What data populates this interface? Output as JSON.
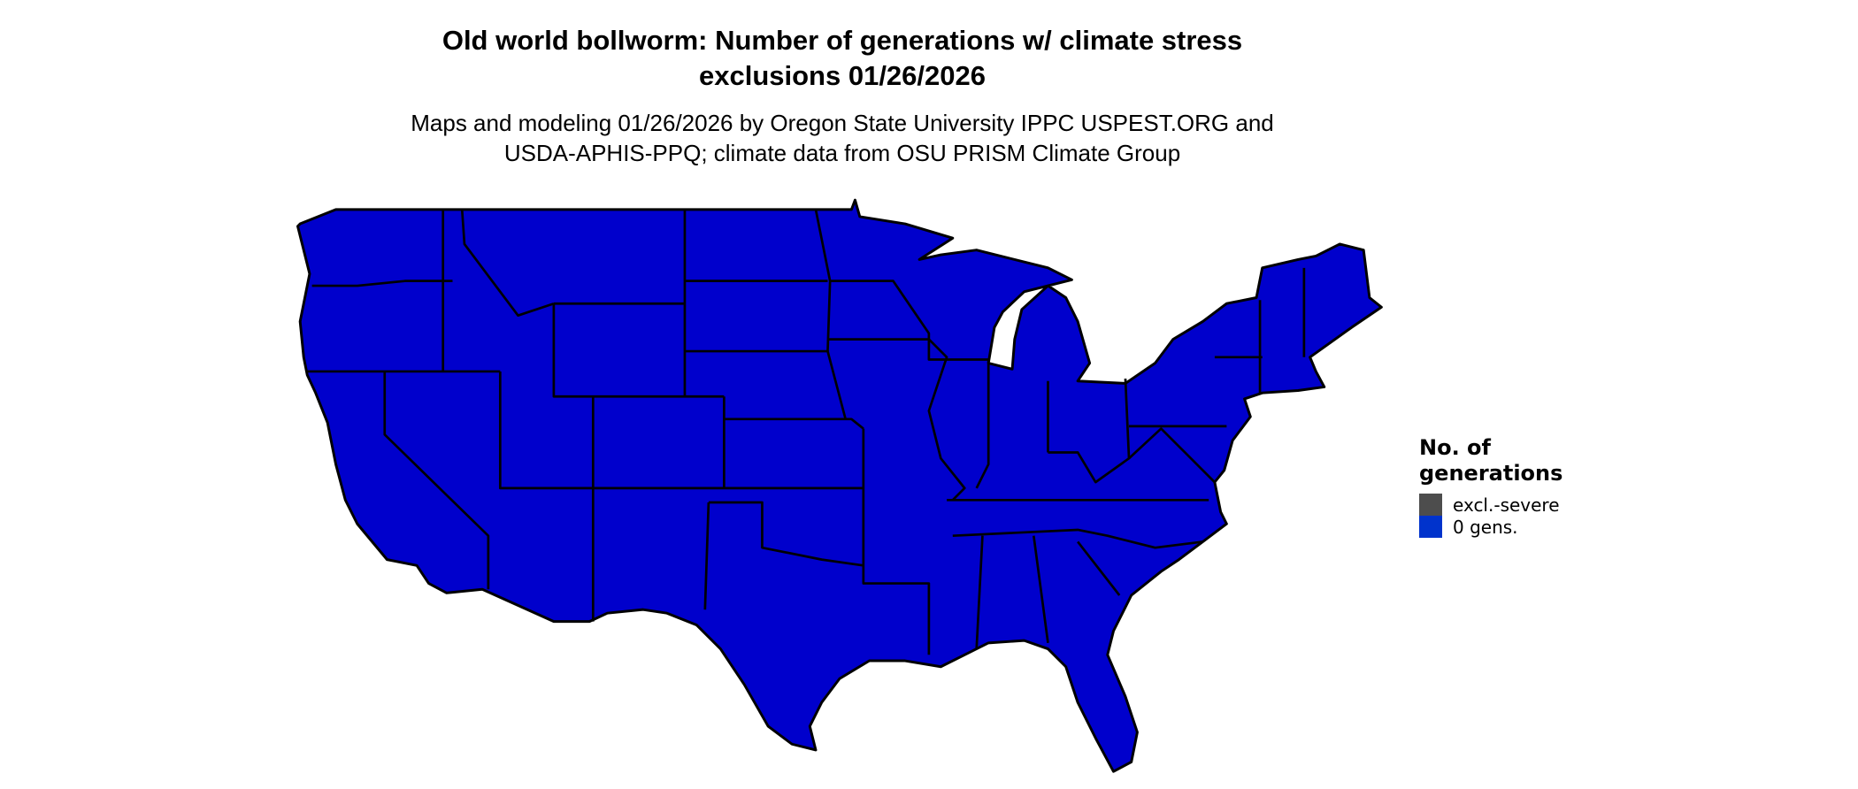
{
  "title": {
    "line1": "Old world bollworm: Number of generations w/ climate stress",
    "line2": "exclusions 01/26/2026"
  },
  "subtitle": {
    "line1": "Maps and modeling 01/26/2026 by Oregon State University IPPC USPEST.ORG and",
    "line2": "USDA-APHIS-PPQ; climate data from OSU PRISM Climate Group"
  },
  "map": {
    "region": "Contiguous United States",
    "fill_color": "#0000cc",
    "border_color": "#000000"
  },
  "legend": {
    "title_line1": "No. of",
    "title_line2": "generations",
    "items": [
      {
        "label": "excl.-severe",
        "color": "#4d4d4d"
      },
      {
        "label": "0 gens.",
        "color": "#0033cc"
      }
    ]
  }
}
